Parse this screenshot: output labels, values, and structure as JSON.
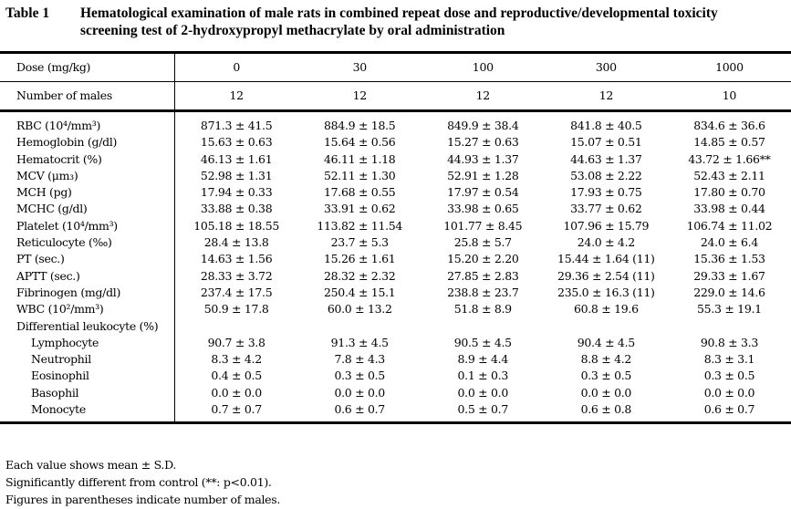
{
  "title": {
    "label": "Table 1",
    "line1": "Hematological examination of male rats in combined repeat dose and reproductive/developmental toxicity",
    "line2": "screening test of 2-hydroxypropyl methacrylate by oral administration"
  },
  "header": {
    "dose_label": "Dose (mg/kg)",
    "doses": [
      "0",
      "30",
      "100",
      "300",
      "1000"
    ],
    "males_label": "Number of males",
    "males": [
      "12",
      "12",
      "12",
      "12",
      "10"
    ]
  },
  "rows": [
    {
      "label": "RBC (10⁴/mm³)",
      "indent": false,
      "values": [
        "871.3 ± 41.5",
        "884.9 ± 18.5",
        "849.9 ± 38.4",
        "841.8 ± 40.5",
        "834.6 ± 36.6"
      ]
    },
    {
      "label": "Hemoglobin (g/dl)",
      "indent": false,
      "values": [
        "15.63 ± 0.63",
        "15.64 ± 0.56",
        "15.27 ± 0.63",
        "15.07 ± 0.51",
        "14.85 ± 0.57"
      ]
    },
    {
      "label": "Hematocrit (%)",
      "indent": false,
      "values": [
        "46.13 ± 1.61",
        "46.11 ± 1.18",
        "44.93 ± 1.37",
        "44.63 ± 1.37",
        "43.72 ± 1.66**"
      ]
    },
    {
      "label": "MCV (μm₃)",
      "indent": false,
      "values": [
        "52.98 ± 1.31",
        "52.11 ± 1.30",
        "52.91 ± 1.28",
        "53.08 ± 2.22",
        "52.43 ± 2.11"
      ]
    },
    {
      "label": "MCH (pg)",
      "indent": false,
      "values": [
        "17.94 ± 0.33",
        "17.68 ± 0.55",
        "17.97 ± 0.54",
        "17.93 ± 0.75",
        "17.80 ± 0.70"
      ]
    },
    {
      "label": "MCHC (g/dl)",
      "indent": false,
      "values": [
        "33.88 ± 0.38",
        "33.91 ± 0.62",
        "33.98 ± 0.65",
        "33.77 ± 0.62",
        "33.98 ± 0.44"
      ]
    },
    {
      "label": "Platelet (10⁴/mm³)",
      "indent": false,
      "values": [
        "105.18 ± 18.55",
        "113.82 ± 11.54",
        "101.77 ± 8.45",
        "107.96 ± 15.79",
        "106.74 ± 11.02"
      ]
    },
    {
      "label": "Reticulocyte (‰)",
      "indent": false,
      "values": [
        "28.4 ± 13.8",
        "23.7 ± 5.3",
        "25.8 ± 5.7",
        "24.0 ± 4.2",
        "24.0 ± 6.4"
      ]
    },
    {
      "label": "PT (sec.)",
      "indent": false,
      "values": [
        "14.63 ± 1.56",
        "15.26 ± 1.61",
        "15.20 ± 2.20",
        "15.44 ± 1.64  (11)",
        "15.36 ± 1.53"
      ]
    },
    {
      "label": "APTT (sec.)",
      "indent": false,
      "values": [
        "28.33 ± 3.72",
        "28.32 ± 2.32",
        "27.85 ± 2.83",
        "29.36 ± 2.54  (11)",
        "29.33 ± 1.67"
      ]
    },
    {
      "label": "Fibrinogen (mg/dl)",
      "indent": false,
      "values": [
        "237.4 ± 17.5",
        "250.4 ± 15.1",
        "238.8 ± 23.7",
        "235.0 ± 16.3  (11)",
        "229.0 ± 14.6"
      ]
    },
    {
      "label": "WBC (10²/mm³)",
      "indent": false,
      "values": [
        "50.9 ± 17.8",
        "60.0 ± 13.2",
        "51.8 ± 8.9",
        "60.8 ± 19.6",
        "55.3 ± 19.1"
      ]
    },
    {
      "label": "Differential leukocyte (%)",
      "indent": false,
      "values": [
        "",
        "",
        "",
        "",
        ""
      ]
    },
    {
      "label": "Lymphocyte",
      "indent": true,
      "values": [
        "90.7 ± 3.8",
        "91.3 ± 4.5",
        "90.5 ± 4.5",
        "90.4 ± 4.5",
        "90.8 ± 3.3"
      ]
    },
    {
      "label": "Neutrophil",
      "indent": true,
      "values": [
        "8.3 ± 4.2",
        "7.8 ± 4.3",
        "8.9 ± 4.4",
        "8.8 ± 4.2",
        "8.3 ± 3.1"
      ]
    },
    {
      "label": "Eosinophil",
      "indent": true,
      "values": [
        "0.4 ± 0.5",
        "0.3 ± 0.5",
        "0.1 ± 0.3",
        "0.3 ± 0.5",
        "0.3 ± 0.5"
      ]
    },
    {
      "label": "Basophil",
      "indent": true,
      "values": [
        "0.0 ± 0.0",
        "0.0 ± 0.0",
        "0.0 ± 0.0",
        "0.0 ± 0.0",
        "0.0 ± 0.0"
      ]
    },
    {
      "label": "Monocyte",
      "indent": true,
      "values": [
        "0.7 ± 0.7",
        "0.6 ± 0.7",
        "0.5 ± 0.7",
        "0.6 ± 0.8",
        "0.6 ± 0.7"
      ]
    }
  ],
  "notes": [
    "Each value shows mean ± S.D.",
    "Significantly different from control (**: p<0.01).",
    "Figures in parentheses indicate number of males."
  ]
}
